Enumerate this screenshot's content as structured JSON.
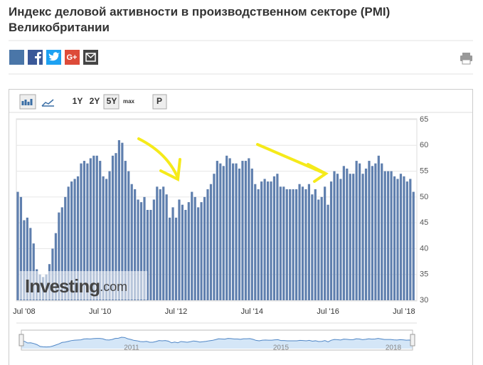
{
  "header": {
    "title": "Индекс деловой активности в производственном секторе (PMI) Великобритании"
  },
  "toolbar": {
    "buttons": [
      "1Y",
      "2Y",
      "5Y",
      "max",
      "P"
    ]
  },
  "watermark": {
    "brand": "Investing",
    "domain": ".com"
  },
  "navigator": {
    "labels": [
      "2011",
      "2015",
      "2018"
    ]
  },
  "chart_data": {
    "type": "bar",
    "color": "#5f7fae",
    "grid": true,
    "ylim": [
      30,
      65
    ],
    "yticks": [
      30,
      35,
      40,
      45,
      50,
      55,
      60,
      65
    ],
    "categories": [
      null,
      null,
      "Jul '08",
      null,
      null,
      null,
      null,
      null,
      null,
      null,
      null,
      null,
      null,
      null,
      null,
      null,
      null,
      null,
      null,
      null,
      null,
      null,
      null,
      null,
      null,
      null,
      "Jul '10",
      null,
      null,
      null,
      null,
      null,
      null,
      null,
      null,
      null,
      null,
      null,
      null,
      null,
      null,
      null,
      null,
      null,
      null,
      null,
      null,
      null,
      null,
      null,
      "Jul '12",
      null,
      null,
      null,
      null,
      null,
      null,
      null,
      null,
      null,
      null,
      null,
      null,
      null,
      null,
      null,
      null,
      null,
      null,
      null,
      null,
      null,
      null,
      null,
      "Jul '14",
      null,
      null,
      null,
      null,
      null,
      null,
      null,
      null,
      null,
      null,
      null,
      null,
      null,
      null,
      null,
      null,
      null,
      null,
      null,
      null,
      null,
      null,
      null,
      "Jul '16",
      null,
      null,
      null,
      null,
      null,
      null,
      null,
      null,
      null,
      null,
      null,
      null,
      null,
      null,
      null,
      null,
      null,
      null,
      null,
      null,
      null,
      null,
      null,
      "Jul '18",
      null,
      null,
      null
    ],
    "values": [
      51,
      50,
      45.5,
      46,
      44,
      41,
      36,
      35,
      34.5,
      35,
      37,
      40,
      43,
      47,
      48,
      50,
      52,
      53,
      53.5,
      54,
      56.5,
      57,
      56.5,
      57.5,
      58,
      58,
      57,
      54,
      53.5,
      55,
      58,
      58.5,
      61,
      60.5,
      57,
      55,
      52.5,
      51.5,
      49.5,
      49,
      50,
      47.5,
      47.5,
      49.5,
      52,
      51.5,
      52,
      50.5,
      46,
      48,
      46,
      49.5,
      48.5,
      47.5,
      49,
      51,
      50,
      48,
      49,
      50,
      51.5,
      52.5,
      54.5,
      57,
      56.5,
      56,
      58,
      57.5,
      56.5,
      56.5,
      55.5,
      57,
      57,
      57.5,
      55.5,
      52.5,
      51.5,
      53,
      53.5,
      53,
      53,
      54,
      54.5,
      52,
      52,
      51.5,
      51.5,
      51.5,
      51.5,
      52.5,
      52,
      51.5,
      52.5,
      50.5,
      51.5,
      49.5,
      50,
      52,
      48.5,
      53,
      55,
      54.5,
      53.5,
      56,
      55.5,
      54.5,
      54.5,
      57,
      56.5,
      54.5,
      55.5,
      57,
      56,
      56.5,
      58,
      56.5,
      55,
      55,
      55,
      54,
      53.5,
      54.5,
      54,
      53,
      53.5,
      51
    ]
  }
}
